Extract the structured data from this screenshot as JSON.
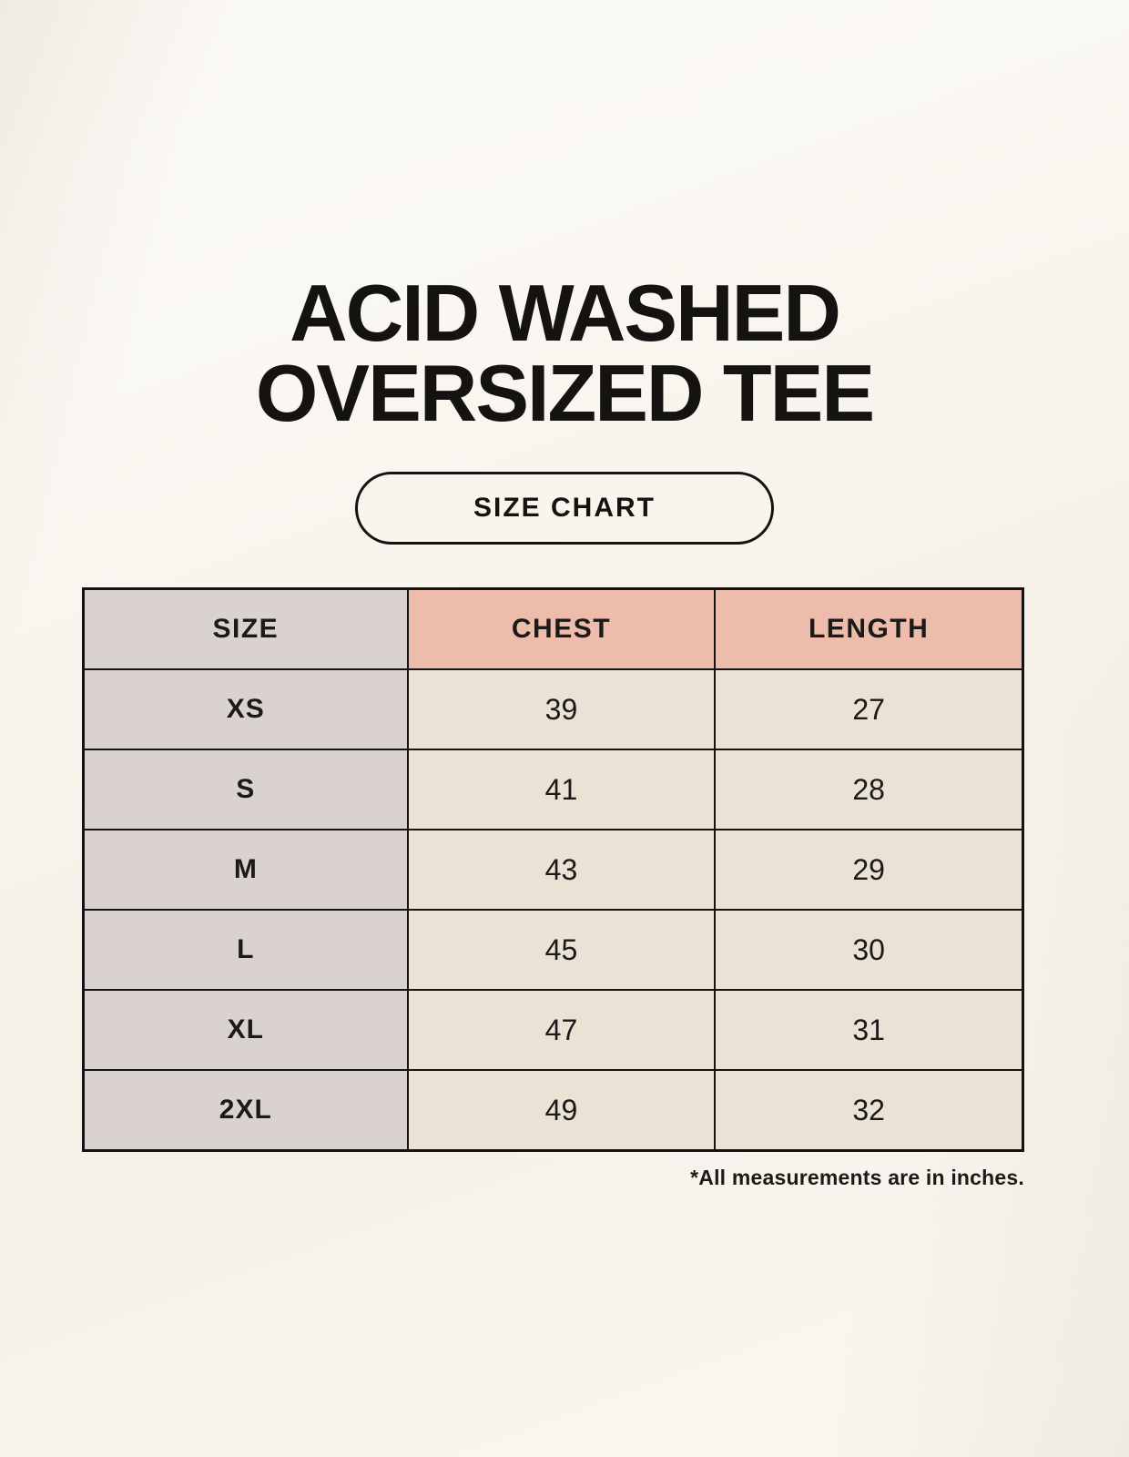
{
  "header": {
    "title_line1": "ACID WASHED",
    "title_line2": "OVERSIZED TEE",
    "badge_label": "SIZE CHART"
  },
  "footnote": "*All measurements are in inches.",
  "colors": {
    "page_background": "#f8f4ec",
    "size_column_background": "#d9d2ce",
    "accent_header_background": "#eebcab",
    "value_cell_background": "#e9e2d5",
    "border": "#141311",
    "text": "#1b1a18"
  },
  "chart_data": {
    "type": "table",
    "title": "ACID WASHED OVERSIZED TEE",
    "subtitle": "SIZE CHART",
    "columns": [
      "SIZE",
      "CHEST",
      "LENGTH"
    ],
    "rows": [
      [
        "XS",
        "39",
        "27"
      ],
      [
        "S",
        "41",
        "28"
      ],
      [
        "M",
        "43",
        "29"
      ],
      [
        "L",
        "45",
        "30"
      ],
      [
        "XL",
        "47",
        "31"
      ],
      [
        "2XL",
        "49",
        "32"
      ]
    ],
    "annotations": [
      "*All measurements are in inches."
    ]
  }
}
